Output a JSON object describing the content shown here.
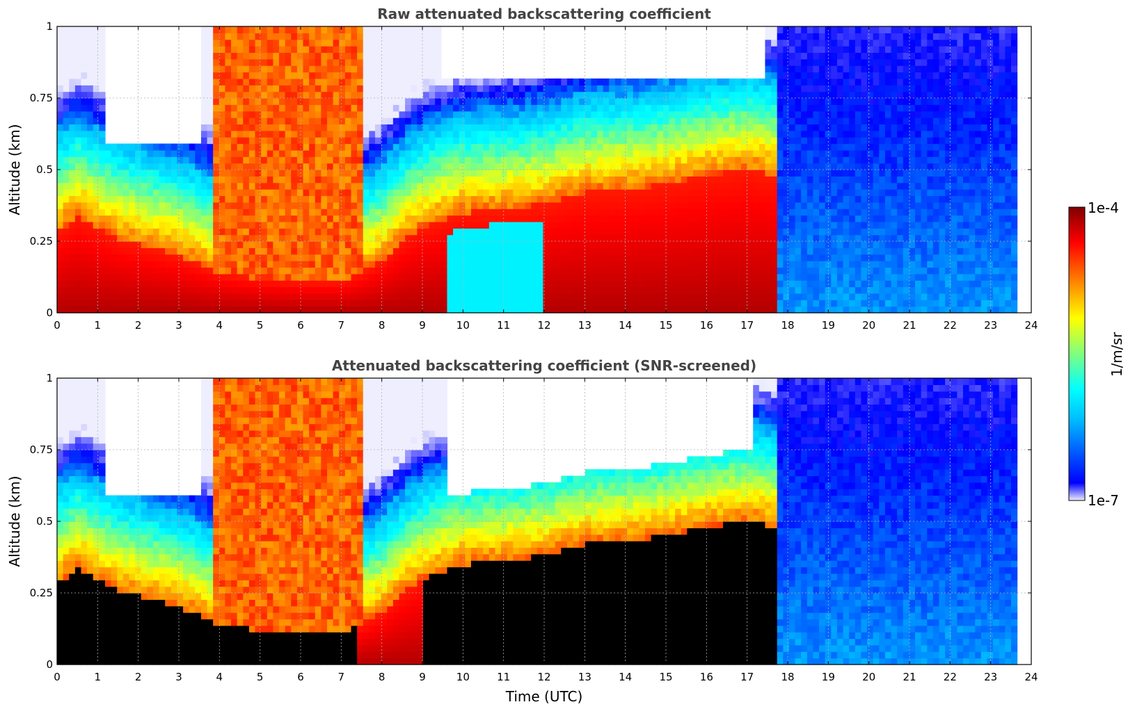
{
  "chart_data": [
    {
      "type": "heatmap",
      "title": "Raw attenuated backscattering coefficient",
      "xlabel": "",
      "ylabel": "Altitude (km)",
      "xlim": [
        0,
        24
      ],
      "ylim": [
        0,
        1
      ],
      "x_ticks": [
        "0",
        "1",
        "2",
        "3",
        "4",
        "5",
        "6",
        "7",
        "8",
        "9",
        "10",
        "11",
        "12",
        "13",
        "14",
        "15",
        "16",
        "17",
        "18",
        "19",
        "20",
        "21",
        "22",
        "23",
        "24"
      ],
      "y_ticks": [
        "0",
        "0.25",
        "0.5",
        "0.75",
        "1"
      ],
      "grid": true,
      "data_end_hour": 23.65,
      "layer_top_km": [
        {
          "t": 0,
          "z": 0.28
        },
        {
          "t": 0.5,
          "z": 0.34
        },
        {
          "t": 1,
          "z": 0.3
        },
        {
          "t": 1.5,
          "z": 0.26
        },
        {
          "t": 2,
          "z": 0.24
        },
        {
          "t": 3,
          "z": 0.2
        },
        {
          "t": 3.5,
          "z": 0.17
        },
        {
          "t": 4,
          "z": 0.14
        },
        {
          "t": 5,
          "z": 0.12
        },
        {
          "t": 6,
          "z": 0.11
        },
        {
          "t": 7,
          "z": 0.11
        },
        {
          "t": 7.5,
          "z": 0.14
        },
        {
          "t": 8,
          "z": 0.18
        },
        {
          "t": 8.5,
          "z": 0.25
        },
        {
          "t": 9,
          "z": 0.3
        },
        {
          "t": 10,
          "z": 0.35
        },
        {
          "t": 11,
          "z": 0.36
        },
        {
          "t": 12,
          "z": 0.38
        },
        {
          "t": 13,
          "z": 0.42
        },
        {
          "t": 14,
          "z": 0.43
        },
        {
          "t": 15,
          "z": 0.45
        },
        {
          "t": 16,
          "z": 0.48
        },
        {
          "t": 17,
          "z": 0.5
        },
        {
          "t": 17.7,
          "z": 0.48
        }
      ]
    },
    {
      "type": "heatmap",
      "title": "Attenuated backscattering coefficient (SNR-screened)",
      "xlabel": "Time (UTC)",
      "ylabel": "Altitude (km)",
      "xlim": [
        0,
        24
      ],
      "ylim": [
        0,
        1
      ],
      "x_ticks": [
        "0",
        "1",
        "2",
        "3",
        "4",
        "5",
        "6",
        "7",
        "8",
        "9",
        "10",
        "11",
        "12",
        "13",
        "14",
        "15",
        "16",
        "17",
        "18",
        "19",
        "20",
        "21",
        "22",
        "23",
        "24"
      ],
      "y_ticks": [
        "0",
        "0.25",
        "0.5",
        "0.75",
        "1"
      ],
      "grid": true,
      "data_end_hour": 23.65
    }
  ],
  "colorbar": {
    "label": "1/m/sr",
    "max_label": "1e-4",
    "min_label": "1e-7",
    "scale": "log",
    "colormap": "jet",
    "colors": [
      "#eeeeff",
      "#0000ff",
      "#00bfff",
      "#00ffff",
      "#7fff7f",
      "#ffff00",
      "#ff8000",
      "#ff0000",
      "#800000"
    ]
  }
}
